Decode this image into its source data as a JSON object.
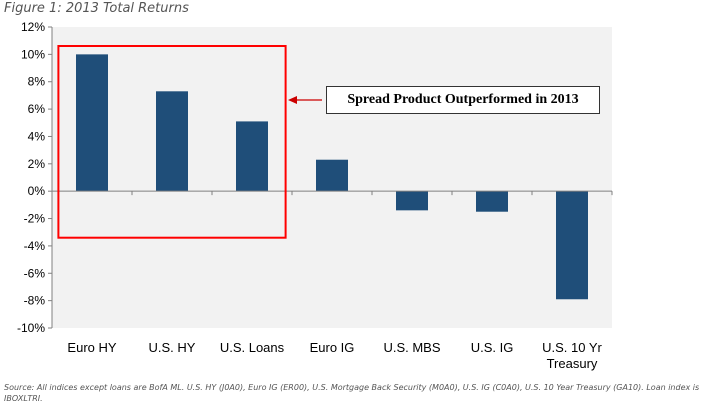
{
  "title": "Figure 1: 2013 Total Returns",
  "chart_data": {
    "type": "bar",
    "categories": [
      "Euro HY",
      "U.S. HY",
      "U.S. Loans",
      "Euro IG",
      "U.S. MBS",
      "U.S. IG",
      "U.S. 10 Yr Treasury"
    ],
    "category_lines": [
      [
        "Euro HY"
      ],
      [
        "U.S. HY"
      ],
      [
        "U.S. Loans"
      ],
      [
        "Euro IG"
      ],
      [
        "U.S. MBS"
      ],
      [
        "U.S. IG"
      ],
      [
        "U.S. 10 Yr",
        "Treasury"
      ]
    ],
    "values": [
      10.0,
      7.3,
      5.1,
      2.3,
      -1.4,
      -1.5,
      -7.9
    ],
    "ylim": [
      -10,
      12
    ],
    "yticks": [
      -10,
      -8,
      -6,
      -4,
      -2,
      0,
      2,
      4,
      6,
      8,
      10,
      12
    ],
    "ytick_labels": [
      "-10%",
      "-8%",
      "-6%",
      "-4%",
      "-2%",
      "0%",
      "2%",
      "4%",
      "6%",
      "8%",
      "10%",
      "12%"
    ],
    "xlabel": "",
    "ylabel": "",
    "grid": false,
    "bar_color": "#1f4e79",
    "plot_background": "#f2f2f2",
    "highlight": {
      "categories": [
        "Euro HY",
        "U.S. HY",
        "U.S. Loans"
      ],
      "color": "#ff0000"
    },
    "annotation": {
      "text": "Spread Product Outperformed in 2013",
      "arrow_color": "#cc0000"
    }
  },
  "source": "Source: All indices except loans are BofA ML. U.S. HY (J0A0), Euro IG (ER00), U.S. Mortgage Back Security (M0A0), U.S. IG (C0A0), U.S. 10 Year Treasury (GA10). Loan index is IBOXLTRI."
}
